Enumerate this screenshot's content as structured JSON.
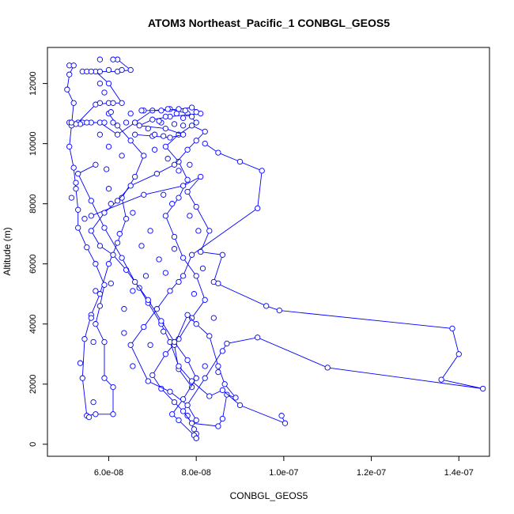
{
  "chart_data": {
    "type": "scatter",
    "title": "ATOM3 Northeast_Pacific_1 CONBGL_GEOS5",
    "xlabel": "CONBGL_GEOS5",
    "ylabel": "Altitude (m)",
    "xlim": [
      4.6e-08,
      1.47e-07
    ],
    "ylim": [
      -400,
      13200
    ],
    "x_ticks": [
      6e-08,
      8e-08,
      1e-07,
      1.2e-07,
      1.4e-07
    ],
    "x_tick_labels": [
      "6.0e-08",
      "8.0e-08",
      "1.0e-07",
      "1.2e-07",
      "1.4e-07"
    ],
    "y_ticks": [
      0,
      2000,
      4000,
      6000,
      8000,
      10000,
      12000
    ],
    "y_tick_labels": [
      "0",
      "2000",
      "4000",
      "6000",
      "8000",
      "10000",
      "12000"
    ],
    "colors": {
      "series": "#0000ff",
      "axis": "#000000"
    },
    "grid": false,
    "legend": "none",
    "series": [
      {
        "line": true,
        "points": [
          [
            8e-08,
            200
          ],
          [
            8e-08,
            350
          ],
          [
            7.95e-08,
            500
          ],
          [
            7.8e-08,
            950
          ],
          [
            7.5e-08,
            1400
          ],
          [
            7.2e-08,
            1850
          ],
          [
            7e-08,
            2300
          ],
          [
            7.3e-08,
            3000
          ],
          [
            7.6e-08,
            3500
          ],
          [
            7.9e-08,
            4200
          ],
          [
            8.2e-08,
            4800
          ],
          [
            8e-08,
            5600
          ],
          [
            7.7e-08,
            6200
          ],
          [
            7.5e-08,
            6900
          ],
          [
            7.3e-08,
            7600
          ],
          [
            7.6e-08,
            8200
          ],
          [
            7.8e-08,
            8800
          ],
          [
            7.6e-08,
            9400
          ],
          [
            7.3e-08,
            9900
          ],
          [
            7.6e-08,
            10300
          ],
          [
            8e-08,
            10700
          ],
          [
            7.8e-08,
            11000
          ],
          [
            7.4e-08,
            11150
          ],
          [
            7e-08,
            11100
          ],
          [
            6.6e-08,
            10700
          ],
          [
            6.2e-08,
            10300
          ],
          [
            5.8e-08,
            10700
          ],
          [
            5.4e-08,
            10700
          ],
          [
            5.1e-08,
            10700
          ],
          [
            5.3e-08,
            10700
          ],
          [
            5.7e-08,
            11300
          ],
          [
            6e-08,
            11350
          ],
          [
            6.3e-08,
            11350
          ],
          [
            6e-08,
            12000
          ],
          [
            5.7e-08,
            12400
          ],
          [
            5.4e-08,
            12400
          ],
          [
            5.8e-08,
            12400
          ],
          [
            6.2e-08,
            12400
          ],
          [
            6.5e-08,
            12450
          ],
          [
            6.2e-08,
            12800
          ]
        ]
      },
      {
        "line": true,
        "points": [
          [
            5.1e-08,
            12600
          ],
          [
            5.2e-08,
            12600
          ],
          [
            5.1e-08,
            12300
          ],
          [
            5.05e-08,
            11800
          ],
          [
            5.2e-08,
            11350
          ],
          [
            5.15e-08,
            10600
          ],
          [
            5.1e-08,
            9900
          ],
          [
            5.2e-08,
            9200
          ],
          [
            5.25e-08,
            8500
          ],
          [
            5.3e-08,
            7800
          ],
          [
            5.3e-08,
            7200
          ],
          [
            5.5e-08,
            6550
          ],
          [
            5.7e-08,
            6000
          ],
          [
            5.9e-08,
            5300
          ],
          [
            5.8e-08,
            4600
          ],
          [
            5.7e-08,
            4000
          ],
          [
            5.9e-08,
            3400
          ],
          [
            5.9e-08,
            2200
          ],
          [
            6.1e-08,
            1900
          ],
          [
            6.1e-08,
            1000
          ],
          [
            5.7e-08,
            1000
          ],
          [
            5.5e-08,
            950
          ],
          [
            5.4e-08,
            2200
          ],
          [
            5.45e-08,
            3500
          ],
          [
            5.6e-08,
            4300
          ],
          [
            5.8e-08,
            5000
          ],
          [
            6e-08,
            6000
          ],
          [
            6.2e-08,
            6700
          ],
          [
            6.4e-08,
            7500
          ],
          [
            6.3e-08,
            8200
          ],
          [
            6.6e-08,
            8900
          ],
          [
            6.8e-08,
            9600
          ],
          [
            6.5e-08,
            10100
          ],
          [
            6.2e-08,
            10600
          ],
          [
            6e-08,
            11000
          ]
        ]
      },
      {
        "line": true,
        "points": [
          [
            5.6e-08,
            7600
          ],
          [
            6.8e-08,
            8300
          ],
          [
            7.7e-08,
            8600
          ],
          [
            8.1e-08,
            8900
          ],
          [
            7.8e-08,
            8400
          ],
          [
            8e-08,
            7900
          ],
          [
            8.3e-08,
            7100
          ],
          [
            8.1e-08,
            6400
          ],
          [
            8.6e-08,
            6300
          ],
          [
            8.4e-08,
            5400
          ],
          [
            9.6e-08,
            4600
          ],
          [
            9.9e-08,
            4450
          ],
          [
            1.385e-07,
            3850
          ],
          [
            1.4e-07,
            3000
          ],
          [
            1.36e-07,
            2150
          ],
          [
            1.455e-07,
            1850
          ],
          [
            1.1e-07,
            2550
          ],
          [
            9.4e-08,
            3550
          ],
          [
            8.7e-08,
            3350
          ],
          [
            8.2e-08,
            2200
          ],
          [
            7.7e-08,
            1100
          ],
          [
            7.9e-08,
            700
          ],
          [
            8.5e-08,
            600
          ],
          [
            8.6e-08,
            850
          ],
          [
            8.7e-08,
            1650
          ],
          [
            8.9e-08,
            1550
          ],
          [
            8.65e-08,
            2000
          ],
          [
            8.5e-08,
            2600
          ],
          [
            8.3e-08,
            3600
          ],
          [
            8e-08,
            4000
          ],
          [
            7.8e-08,
            4300
          ],
          [
            7.5e-08,
            3300
          ],
          [
            7.6e-08,
            2500
          ],
          [
            7.9e-08,
            1900
          ]
        ]
      },
      {
        "line": true,
        "points": [
          [
            9.95e-08,
            950
          ],
          [
            1.003e-07,
            700
          ],
          [
            9e-08,
            1300
          ],
          [
            8.6e-08,
            1800
          ],
          [
            8.3e-08,
            1600
          ],
          [
            7.9e-08,
            2100
          ],
          [
            7.6e-08,
            2600
          ],
          [
            7.4e-08,
            3400
          ],
          [
            7.2e-08,
            4000
          ],
          [
            6.9e-08,
            4700
          ],
          [
            6.7e-08,
            5200
          ],
          [
            6.4e-08,
            5800
          ],
          [
            6.1e-08,
            6300
          ],
          [
            5.8e-08,
            6600
          ],
          [
            5.6e-08,
            7100
          ],
          [
            5.9e-08,
            7700
          ],
          [
            6.2e-08,
            8100
          ],
          [
            6.5e-08,
            8600
          ],
          [
            7.1e-08,
            9000
          ],
          [
            7.5e-08,
            9300
          ],
          [
            7.8e-08,
            9800
          ],
          [
            8e-08,
            10100
          ],
          [
            8.2e-08,
            10400
          ],
          [
            7.9e-08,
            10600
          ]
        ]
      },
      {
        "line": true,
        "points": [
          [
            8e-08,
            800
          ],
          [
            7.8e-08,
            1300
          ],
          [
            7.4e-08,
            1750
          ],
          [
            6.9e-08,
            2100
          ],
          [
            6.5e-08,
            3300
          ],
          [
            6.8e-08,
            3900
          ],
          [
            7.1e-08,
            4500
          ],
          [
            7.4e-08,
            5100
          ],
          [
            7.7e-08,
            5600
          ],
          [
            7.9e-08,
            6300
          ],
          [
            9.4e-08,
            7850
          ],
          [
            9.5e-08,
            9100
          ],
          [
            9e-08,
            9400
          ],
          [
            8.5e-08,
            9700
          ],
          [
            8.2e-08,
            10000
          ]
        ]
      },
      {
        "line": true,
        "points": [
          [
            5.7e-08,
            9300
          ],
          [
            5.3e-08,
            9000
          ],
          [
            5.6e-08,
            8100
          ],
          [
            5.9e-08,
            7200
          ],
          [
            6.3e-08,
            6200
          ],
          [
            6.6e-08,
            5400
          ],
          [
            6.9e-08,
            4800
          ],
          [
            7.2e-08,
            4100
          ],
          [
            7.5e-08,
            3400
          ],
          [
            7.8e-08,
            2800
          ],
          [
            8e-08,
            2200
          ],
          [
            7.7e-08,
            1500
          ],
          [
            7.45e-08,
            1000
          ],
          [
            7.6e-08,
            800
          ],
          [
            7.95e-08,
            300
          ],
          [
            8e-08,
            200
          ]
        ]
      },
      {
        "line": true,
        "points": [
          [
            6.8e-08,
            11100
          ],
          [
            7.2e-08,
            11100
          ],
          [
            7.6e-08,
            11150
          ],
          [
            7.9e-08,
            11200
          ],
          [
            8.1e-08,
            11000
          ],
          [
            7.4e-08,
            10900
          ],
          [
            7e-08,
            10800
          ],
          [
            6.7e-08,
            10600
          ],
          [
            7.3e-08,
            10500
          ],
          [
            7.7e-08,
            10300
          ],
          [
            7.4e-08,
            10200
          ],
          [
            7e-08,
            10250
          ],
          [
            6.6e-08,
            10300
          ]
        ]
      },
      {
        "line": false,
        "points": [
          [
            5.6e-08,
            10700
          ],
          [
            5.9e-08,
            10700
          ],
          [
            6.1e-08,
            10700
          ],
          [
            6.4e-08,
            10700
          ],
          [
            6.6e-08,
            10700
          ],
          [
            7.2e-08,
            10700
          ],
          [
            7.5e-08,
            10650
          ],
          [
            7.7e-08,
            10600
          ],
          [
            7.9e-08,
            10900
          ],
          [
            8e-08,
            11050
          ],
          [
            5.8e-08,
            11350
          ],
          [
            6.1e-08,
            11350
          ],
          [
            5.9e-08,
            11700
          ],
          [
            5.8e-08,
            12000
          ],
          [
            6e-08,
            12450
          ],
          [
            5.8e-08,
            12800
          ],
          [
            6.1e-08,
            12800
          ],
          [
            6.3e-08,
            12450
          ],
          [
            5.5e-08,
            12400
          ],
          [
            5.6e-08,
            12400
          ],
          [
            5.35e-08,
            10650
          ],
          [
            5.25e-08,
            10650
          ],
          [
            5.15e-08,
            10700
          ],
          [
            5.5e-08,
            10700
          ],
          [
            6.05e-08,
            11050
          ],
          [
            6.5e-08,
            11000
          ],
          [
            7.3e-08,
            10900
          ],
          [
            7.55e-08,
            11000
          ],
          [
            7.75e-08,
            11100
          ],
          [
            7.7e-08,
            10850
          ],
          [
            7.25e-08,
            10250
          ],
          [
            7.05e-08,
            10300
          ],
          [
            6.9e-08,
            10500
          ],
          [
            6.75e-08,
            11100
          ],
          [
            7.15e-08,
            10750
          ],
          [
            7.35e-08,
            11150
          ],
          [
            7.05e-08,
            9800
          ],
          [
            7.35e-08,
            9500
          ],
          [
            7.6e-08,
            9100
          ],
          [
            7.85e-08,
            9300
          ],
          [
            7.25e-08,
            8300
          ],
          [
            7.45e-08,
            8000
          ],
          [
            7.85e-08,
            7600
          ],
          [
            8.05e-08,
            7100
          ],
          [
            6.55e-08,
            7700
          ],
          [
            6.95e-08,
            7100
          ],
          [
            6.75e-08,
            6600
          ],
          [
            7.15e-08,
            6150
          ],
          [
            7.5e-08,
            6500
          ],
          [
            7.3e-08,
            5700
          ],
          [
            7.6e-08,
            5400
          ],
          [
            7.95e-08,
            5000
          ],
          [
            8.15e-08,
            5850
          ],
          [
            8.5e-08,
            5350
          ],
          [
            8.4e-08,
            4200
          ],
          [
            8.6e-08,
            3100
          ],
          [
            8.2e-08,
            2600
          ],
          [
            8.5e-08,
            2400
          ],
          [
            7.25e-08,
            3750
          ],
          [
            6.95e-08,
            3300
          ],
          [
            6.55e-08,
            2600
          ],
          [
            6.35e-08,
            4500
          ],
          [
            6.05e-08,
            5350
          ],
          [
            5.7e-08,
            5100
          ],
          [
            5.6e-08,
            4200
          ],
          [
            5.65e-08,
            3400
          ],
          [
            5.35e-08,
            2700
          ],
          [
            5.65e-08,
            1400
          ],
          [
            5.55e-08,
            900
          ],
          [
            6.35e-08,
            3700
          ],
          [
            6.55e-08,
            5100
          ],
          [
            6.85e-08,
            5600
          ],
          [
            5.45e-08,
            7500
          ],
          [
            5.15e-08,
            8200
          ],
          [
            5.25e-08,
            8700
          ],
          [
            6.05e-08,
            8000
          ],
          [
            6.25e-08,
            7000
          ],
          [
            6e-08,
            8500
          ],
          [
            5.95e-08,
            9150
          ],
          [
            6.3e-08,
            9600
          ],
          [
            6e-08,
            9900
          ],
          [
            5.8e-08,
            10300
          ]
        ]
      }
    ]
  }
}
